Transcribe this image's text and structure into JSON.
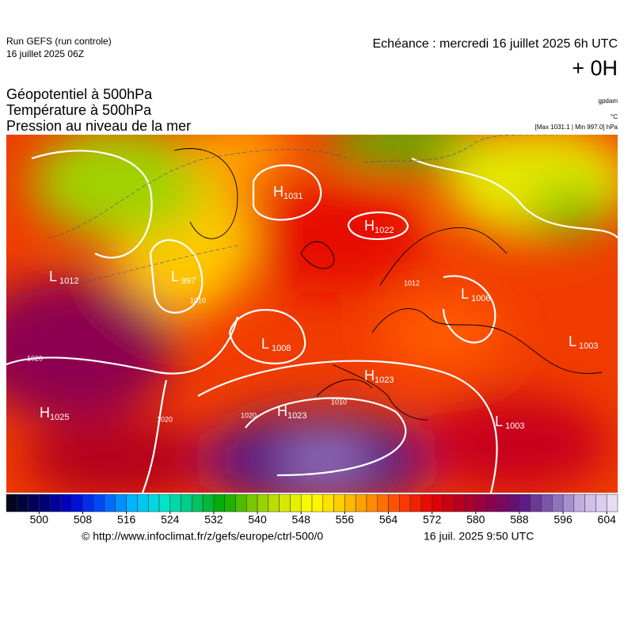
{
  "header": {
    "run": "Run GEFS (run controle)",
    "run_date": "16 juillet 2025 06Z",
    "echeance": "Echéance : mercredi 16 juillet 2025 6h UTC",
    "lead": "+ 0H"
  },
  "fields": [
    {
      "name": "Géopotentiel à 500hPa",
      "unit": "gpdam"
    },
    {
      "name": "Température à 500hPa",
      "unit": "°C"
    },
    {
      "name": "Pression au niveau de la mer",
      "unit": "[Max 1031.1 | Min 997.0] hPa"
    }
  ],
  "pressure_centers": [
    {
      "kind": "H",
      "value": 1031
    },
    {
      "kind": "H",
      "value": 1022
    },
    {
      "kind": "L",
      "value": 1012
    },
    {
      "kind": "L",
      "value": 997
    },
    {
      "kind": "L",
      "value": 1008
    },
    {
      "kind": "H",
      "value": 1023
    },
    {
      "kind": "H",
      "value": 1025
    },
    {
      "kind": "H",
      "value": 1023
    },
    {
      "kind": "L",
      "value": 1003
    },
    {
      "kind": "L",
      "value": 1003
    },
    {
      "kind": "L",
      "value": 1006
    }
  ],
  "isobar_labels": [
    1020,
    1020,
    1020,
    1010,
    1010,
    1012
  ],
  "colorbar": {
    "range": [
      494,
      606
    ],
    "step": 2,
    "ticks": [
      500,
      508,
      516,
      524,
      532,
      540,
      548,
      556,
      564,
      572,
      580,
      588,
      596,
      604
    ],
    "colors": [
      "#05051e",
      "#000070",
      "#0000d0",
      "#0050ff",
      "#00b4ff",
      "#00e6d2",
      "#00c878",
      "#00aa00",
      "#78c800",
      "#d2e600",
      "#ffff00",
      "#ffc800",
      "#ff8c00",
      "#ff3c00",
      "#e60000",
      "#b4001e",
      "#8c0050",
      "#5a1482",
      "#8264b4",
      "#c8b4e6",
      "#e6dcf5"
    ]
  },
  "footer": {
    "source": "© http://www.infoclimat.fr/z/gefs/europe/ctrl-500/0",
    "timestamp": "16 juil. 2025  9:50 UTC"
  }
}
